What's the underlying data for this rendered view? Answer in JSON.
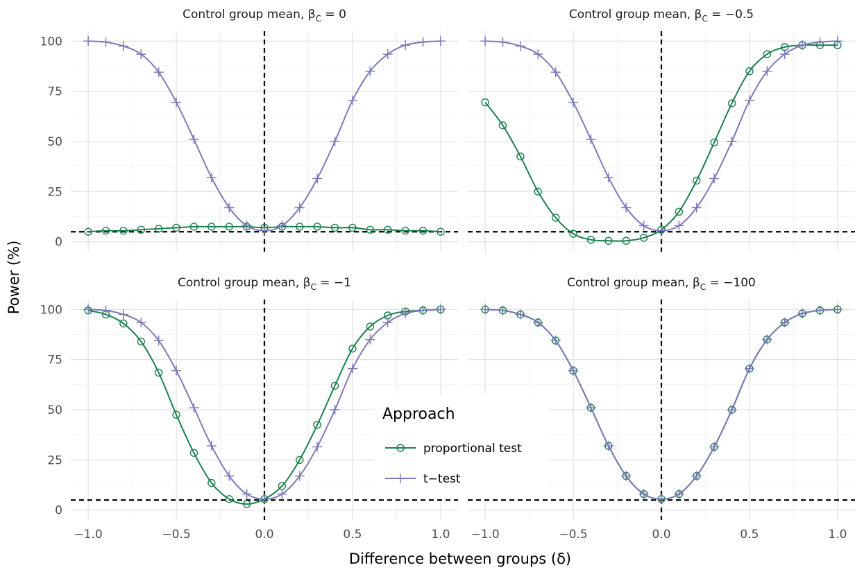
{
  "chart_data": [
    {
      "type": "line",
      "strip": {
        "prefix": "Control group mean, ",
        "beta": "β",
        "sub": "C",
        "suffix": " = 0"
      },
      "x": [
        -1.0,
        -0.9,
        -0.8,
        -0.7,
        -0.6,
        -0.5,
        -0.4,
        -0.3,
        -0.2,
        -0.1,
        0.0,
        0.1,
        0.2,
        0.3,
        0.4,
        0.5,
        0.6,
        0.7,
        0.8,
        0.9,
        1.0
      ],
      "series": [
        {
          "name": "proportional test",
          "values": [
            5,
            5.5,
            5.5,
            6,
            6.5,
            7,
            7.5,
            7.5,
            7.5,
            7.5,
            7,
            7.5,
            7.5,
            7.5,
            7,
            7,
            6,
            6,
            5.5,
            5.5,
            5
          ]
        },
        {
          "name": "t−test",
          "values": [
            100,
            99.5,
            97.5,
            93.5,
            84.5,
            69.5,
            51,
            32,
            17,
            8,
            5.5,
            8,
            17,
            31.5,
            50,
            70.5,
            85,
            93.5,
            98,
            99.5,
            100
          ]
        }
      ],
      "xlim": [
        -1,
        1
      ],
      "ylim": [
        0,
        100
      ],
      "hline": 5,
      "vline": 0
    },
    {
      "type": "line",
      "strip": {
        "prefix": "Control group mean, ",
        "beta": "β",
        "sub": "C",
        "suffix": " = −0.5"
      },
      "x": [
        -1.0,
        -0.9,
        -0.8,
        -0.7,
        -0.6,
        -0.5,
        -0.4,
        -0.3,
        -0.2,
        -0.1,
        0.0,
        0.1,
        0.2,
        0.3,
        0.4,
        0.5,
        0.6,
        0.7,
        0.8,
        0.9,
        1.0
      ],
      "series": [
        {
          "name": "proportional test",
          "values": [
            69.5,
            58,
            42.5,
            25,
            12,
            4,
            1,
            0.5,
            0.5,
            2,
            6,
            15,
            30.5,
            49.5,
            69,
            85,
            93.5,
            97,
            98,
            98,
            98
          ]
        },
        {
          "name": "t−test",
          "values": [
            100,
            99.5,
            97.5,
            93.5,
            84.5,
            69.5,
            51,
            32,
            17,
            8,
            5.5,
            8,
            17,
            31.5,
            50,
            70.5,
            85,
            93.5,
            98,
            99.5,
            100
          ]
        }
      ],
      "xlim": [
        -1,
        1
      ],
      "ylim": [
        0,
        100
      ],
      "hline": 5,
      "vline": 0
    },
    {
      "type": "line",
      "strip": {
        "prefix": "Control group mean, ",
        "beta": "β",
        "sub": "C",
        "suffix": " = −1"
      },
      "x": [
        -1.0,
        -0.9,
        -0.8,
        -0.7,
        -0.6,
        -0.5,
        -0.4,
        -0.3,
        -0.2,
        -0.1,
        0.0,
        0.1,
        0.2,
        0.3,
        0.4,
        0.5,
        0.6,
        0.7,
        0.8,
        0.9,
        1.0
      ],
      "series": [
        {
          "name": "proportional test",
          "values": [
            99.5,
            97.5,
            93,
            84,
            68.5,
            47.5,
            28.5,
            13.5,
            5.5,
            3,
            5.5,
            12,
            25,
            42.5,
            62,
            80.5,
            91.5,
            97,
            99,
            99.5,
            100
          ]
        },
        {
          "name": "t−test",
          "values": [
            100,
            99.5,
            97.5,
            93.5,
            84.5,
            69.5,
            51,
            32,
            17,
            8,
            5.5,
            8,
            17,
            31.5,
            50,
            70.5,
            85,
            93.5,
            98,
            99.5,
            100
          ]
        }
      ],
      "xlim": [
        -1,
        1
      ],
      "ylim": [
        0,
        100
      ],
      "hline": 5,
      "vline": 0
    },
    {
      "type": "line",
      "strip": {
        "prefix": "Control group mean, ",
        "beta": "β",
        "sub": "C",
        "suffix": " = −100"
      },
      "x": [
        -1.0,
        -0.9,
        -0.8,
        -0.7,
        -0.6,
        -0.5,
        -0.4,
        -0.3,
        -0.2,
        -0.1,
        0.0,
        0.1,
        0.2,
        0.3,
        0.4,
        0.5,
        0.6,
        0.7,
        0.8,
        0.9,
        1.0
      ],
      "series": [
        {
          "name": "proportional test",
          "values": [
            100,
            99.5,
            97.5,
            93.5,
            84.5,
            69.5,
            51,
            32,
            17,
            8,
            5.5,
            8,
            17,
            31.5,
            50,
            70.5,
            85,
            93.5,
            98,
            99.5,
            100
          ]
        },
        {
          "name": "t−test",
          "values": [
            100,
            99.5,
            97.5,
            93.5,
            84.5,
            69.5,
            51,
            32,
            17,
            8,
            5.5,
            8,
            17,
            31.5,
            50,
            70.5,
            85,
            93.5,
            98,
            99.5,
            100
          ]
        }
      ],
      "xlim": [
        -1,
        1
      ],
      "ylim": [
        0,
        100
      ],
      "hline": 5,
      "vline": 0
    }
  ],
  "axes": {
    "xlabel": "Difference between groups (δ)",
    "ylabel": "Power (%)",
    "x_ticks": [
      "−1.0",
      "−0.5",
      "0.0",
      "0.5",
      "1.0"
    ],
    "x_tick_values": [
      -1,
      -0.5,
      0,
      0.5,
      1
    ],
    "y_ticks": [
      "0",
      "25",
      "50",
      "75",
      "100"
    ],
    "y_tick_values": [
      0,
      25,
      50,
      75,
      100
    ]
  },
  "legend": {
    "title": "Approach",
    "placement": "inside-bottom-center",
    "items": [
      {
        "label": "proportional test",
        "marker": "circle"
      },
      {
        "label": "t−test",
        "marker": "plus"
      }
    ]
  },
  "colors": {
    "proportional_test": "#1b7f4e",
    "t_test": "#7b79b8",
    "grid_major": "#e3e3e3",
    "grid_minor": "#f1f1f1",
    "reference_line": "#000000"
  }
}
